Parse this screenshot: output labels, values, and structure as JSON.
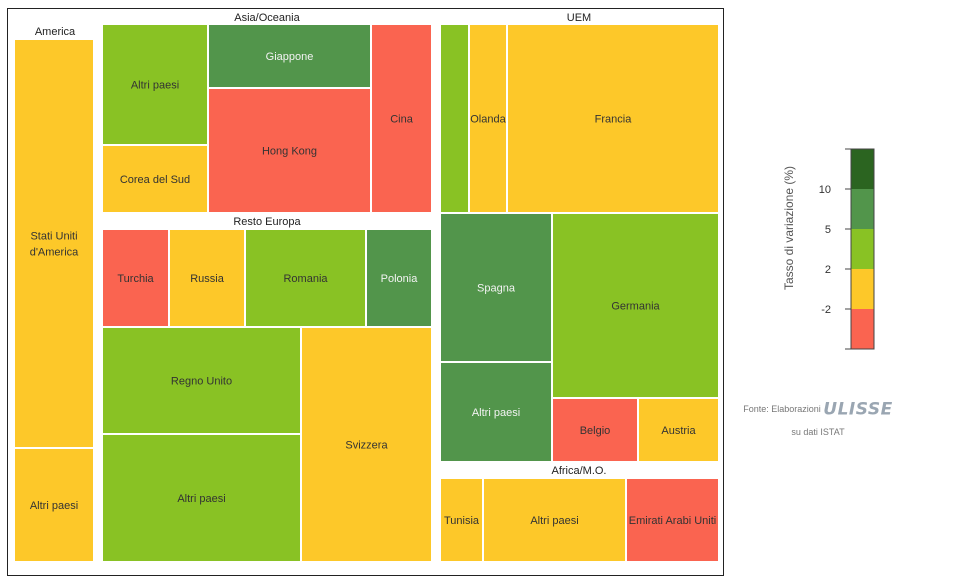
{
  "chart_data": {
    "type": "treemap",
    "colors": {
      "lt_m2": "#fa6450",
      "m2_2": "#fdc829",
      "2_5": "#89c224",
      "5_10": "#52954b",
      "gt_10": "#2b6420"
    },
    "groups": [
      {
        "name": "America",
        "items": [
          {
            "label": "Stati Uniti\nd'America",
            "class": "m2_2"
          },
          {
            "label": "Altri paesi",
            "class": "m2_2"
          }
        ]
      },
      {
        "name": "Asia/Oceania",
        "items": [
          {
            "label": "Altri paesi",
            "class": "2_5"
          },
          {
            "label": "Corea del Sud",
            "class": "m2_2"
          },
          {
            "label": "Giappone",
            "class": "5_10"
          },
          {
            "label": "Hong Kong",
            "class": "lt_m2"
          },
          {
            "label": "Cina",
            "class": "lt_m2"
          }
        ]
      },
      {
        "name": "Resto Europa",
        "items": [
          {
            "label": "Turchia",
            "class": "lt_m2"
          },
          {
            "label": "Russia",
            "class": "m2_2"
          },
          {
            "label": "Romania",
            "class": "2_5"
          },
          {
            "label": "Polonia",
            "class": "5_10"
          },
          {
            "label": "Regno Unito",
            "class": "2_5"
          },
          {
            "label": "Altri paesi",
            "class": "2_5"
          },
          {
            "label": "Svizzera",
            "class": "m2_2"
          }
        ]
      },
      {
        "name": "UEM",
        "items": [
          {
            "label": "",
            "class": "2_5"
          },
          {
            "label": "Olanda",
            "class": "m2_2"
          },
          {
            "label": "Francia",
            "class": "m2_2"
          },
          {
            "label": "Spagna",
            "class": "5_10"
          },
          {
            "label": "Germania",
            "class": "2_5"
          },
          {
            "label": "Altri paesi",
            "class": "5_10"
          },
          {
            "label": "Belgio",
            "class": "lt_m2"
          },
          {
            "label": "Austria",
            "class": "m2_2"
          }
        ]
      },
      {
        "name": "Africa/M.O.",
        "items": [
          {
            "label": "Tunisia",
            "class": "m2_2"
          },
          {
            "label": "Altri paesi",
            "class": "m2_2"
          },
          {
            "label": "Emirati Arabi Uniti",
            "class": "lt_m2"
          }
        ]
      }
    ],
    "legend": {
      "title": "Tasso di variazione (%)",
      "ticks": [
        "10",
        "5",
        "2",
        "-2"
      ],
      "classes": [
        "gt_10",
        "5_10",
        "2_5",
        "m2_2",
        "lt_m2"
      ]
    }
  },
  "source": {
    "prefix": "Fonte: Elaborazioni",
    "brand": "ULISSE",
    "suffix": "su dati ISTAT"
  }
}
